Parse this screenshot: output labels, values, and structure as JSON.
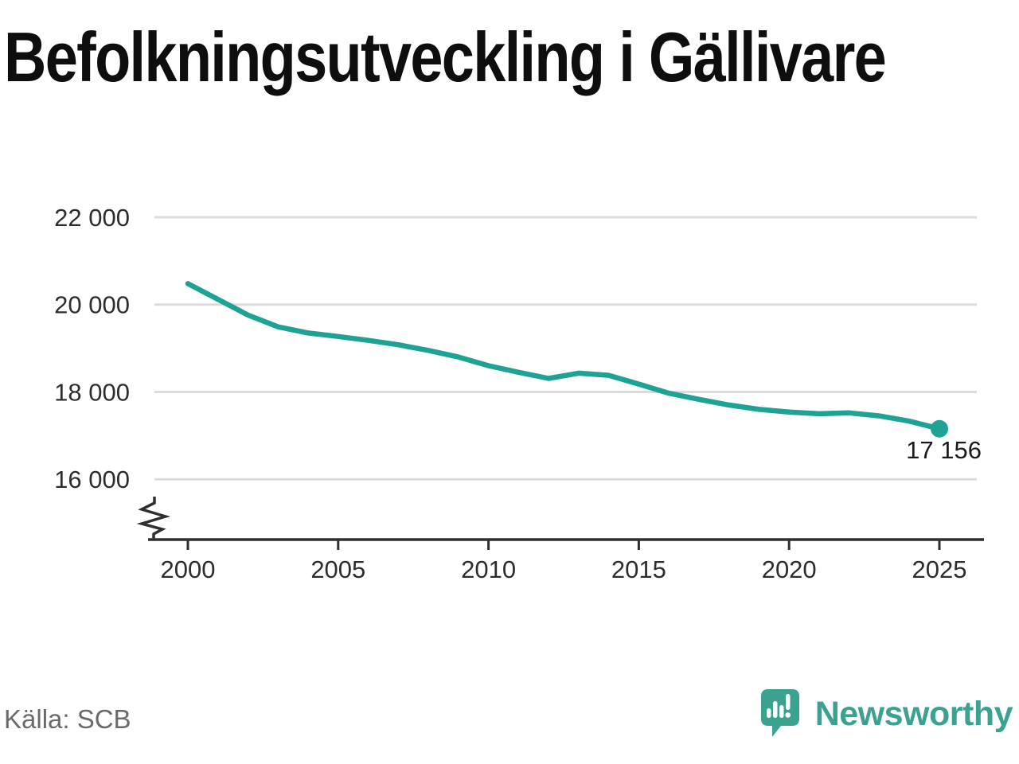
{
  "title": "Befolkningsutveckling i Gällivare",
  "source": "Källa: SCB",
  "brand": {
    "name": "Newsworthy",
    "color": "#3aa28f",
    "icon": "bar-chart-speech-bubble"
  },
  "chart_data": {
    "type": "line",
    "title": "Befolkningsutveckling i Gällivare",
    "series_name": "Befolkning",
    "x": [
      2000,
      2001,
      2002,
      2003,
      2004,
      2005,
      2006,
      2007,
      2008,
      2009,
      2010,
      2011,
      2012,
      2013,
      2014,
      2015,
      2016,
      2017,
      2018,
      2019,
      2020,
      2021,
      2022,
      2023,
      2024,
      2025
    ],
    "values": [
      20480,
      20120,
      19760,
      19490,
      19350,
      19270,
      19180,
      19080,
      18950,
      18800,
      18600,
      18450,
      18310,
      18430,
      18380,
      18180,
      17970,
      17830,
      17700,
      17600,
      17540,
      17500,
      17520,
      17450,
      17330,
      17156
    ],
    "end_point": {
      "x": 2025,
      "value": 17156,
      "label": "17 156"
    },
    "x_ticks": [
      {
        "value": 2000,
        "label": "2000"
      },
      {
        "value": 2005,
        "label": "2005"
      },
      {
        "value": 2010,
        "label": "2010"
      },
      {
        "value": 2015,
        "label": "2015"
      },
      {
        "value": 2020,
        "label": "2020"
      },
      {
        "value": 2025,
        "label": "2025"
      }
    ],
    "y_ticks": [
      {
        "value": 22000,
        "label": "22 000"
      },
      {
        "value": 20000,
        "label": "20 000"
      },
      {
        "value": 18000,
        "label": "18 000"
      },
      {
        "value": 16000,
        "label": "16 000"
      }
    ],
    "ylim": [
      16000,
      22000
    ],
    "xlim": [
      2000,
      2026.5
    ],
    "y_axis_break": true,
    "grid": "horizontal",
    "legend": "none",
    "line_color": "#1ea294",
    "grid_color": "#dbdbdb",
    "axis_color": "#2f2f2f",
    "label_color": "#2d2d2d",
    "annotation_color": "#1a1a1a"
  }
}
